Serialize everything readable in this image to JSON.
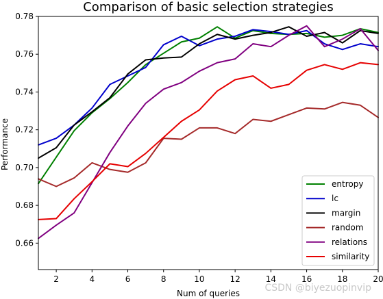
{
  "chart_data": {
    "type": "line",
    "title": "Comparison of basic selection strategies",
    "xlabel": "Num of queries",
    "ylabel": "Performance",
    "xlim": [
      1,
      20
    ],
    "ylim": [
      0.646,
      0.78
    ],
    "xticks": [
      2,
      4,
      6,
      8,
      10,
      12,
      14,
      16,
      18,
      20
    ],
    "yticks": [
      0.66,
      0.68,
      0.7,
      0.72,
      0.74,
      0.76,
      0.78
    ],
    "grid": false,
    "legend_position": "lower-right",
    "x": [
      1,
      2,
      3,
      4,
      5,
      6,
      7,
      8,
      9,
      10,
      11,
      12,
      13,
      14,
      15,
      16,
      17,
      18,
      19,
      20
    ],
    "series": [
      {
        "name": "entropy",
        "color": "#008000",
        "values": [
          0.6915,
          0.7055,
          0.7195,
          0.729,
          0.7365,
          0.745,
          0.7545,
          0.7605,
          0.7665,
          0.7685,
          0.7745,
          0.7685,
          0.7725,
          0.771,
          0.7705,
          0.771,
          0.769,
          0.77,
          0.7735,
          0.7715
        ]
      },
      {
        "name": "lc",
        "color": "#0000cc",
        "values": [
          0.712,
          0.7155,
          0.7225,
          0.7315,
          0.744,
          0.7485,
          0.753,
          0.765,
          0.7695,
          0.7645,
          0.768,
          0.7695,
          0.773,
          0.772,
          0.7705,
          0.7725,
          0.7655,
          0.7625,
          0.7655,
          0.764
        ]
      },
      {
        "name": "margin",
        "color": "#000000",
        "values": [
          0.705,
          0.7105,
          0.7225,
          0.7295,
          0.737,
          0.7495,
          0.757,
          0.758,
          0.7585,
          0.7655,
          0.7705,
          0.768,
          0.77,
          0.7715,
          0.7745,
          0.7695,
          0.7715,
          0.766,
          0.7725,
          0.771
        ]
      },
      {
        "name": "random",
        "color": "#a52a2a",
        "values": [
          0.694,
          0.69,
          0.6945,
          0.7025,
          0.699,
          0.6975,
          0.7025,
          0.7155,
          0.715,
          0.721,
          0.721,
          0.718,
          0.7255,
          0.7245,
          0.728,
          0.7315,
          0.731,
          0.7345,
          0.733,
          0.7265
        ]
      },
      {
        "name": "relations",
        "color": "#800080",
        "values": [
          0.6625,
          0.6695,
          0.676,
          0.692,
          0.708,
          0.722,
          0.734,
          0.7415,
          0.745,
          0.751,
          0.7555,
          0.7575,
          0.7655,
          0.764,
          0.77,
          0.775,
          0.764,
          0.768,
          0.7735,
          0.762
        ]
      },
      {
        "name": "similarity",
        "color": "#e60000",
        "values": [
          0.6725,
          0.673,
          0.6835,
          0.6925,
          0.702,
          0.7005,
          0.7075,
          0.716,
          0.7245,
          0.7305,
          0.7405,
          0.7465,
          0.7485,
          0.742,
          0.744,
          0.7515,
          0.7545,
          0.752,
          0.7555,
          0.7545
        ]
      }
    ]
  },
  "watermark": "CSDN @biyezuopinvip"
}
